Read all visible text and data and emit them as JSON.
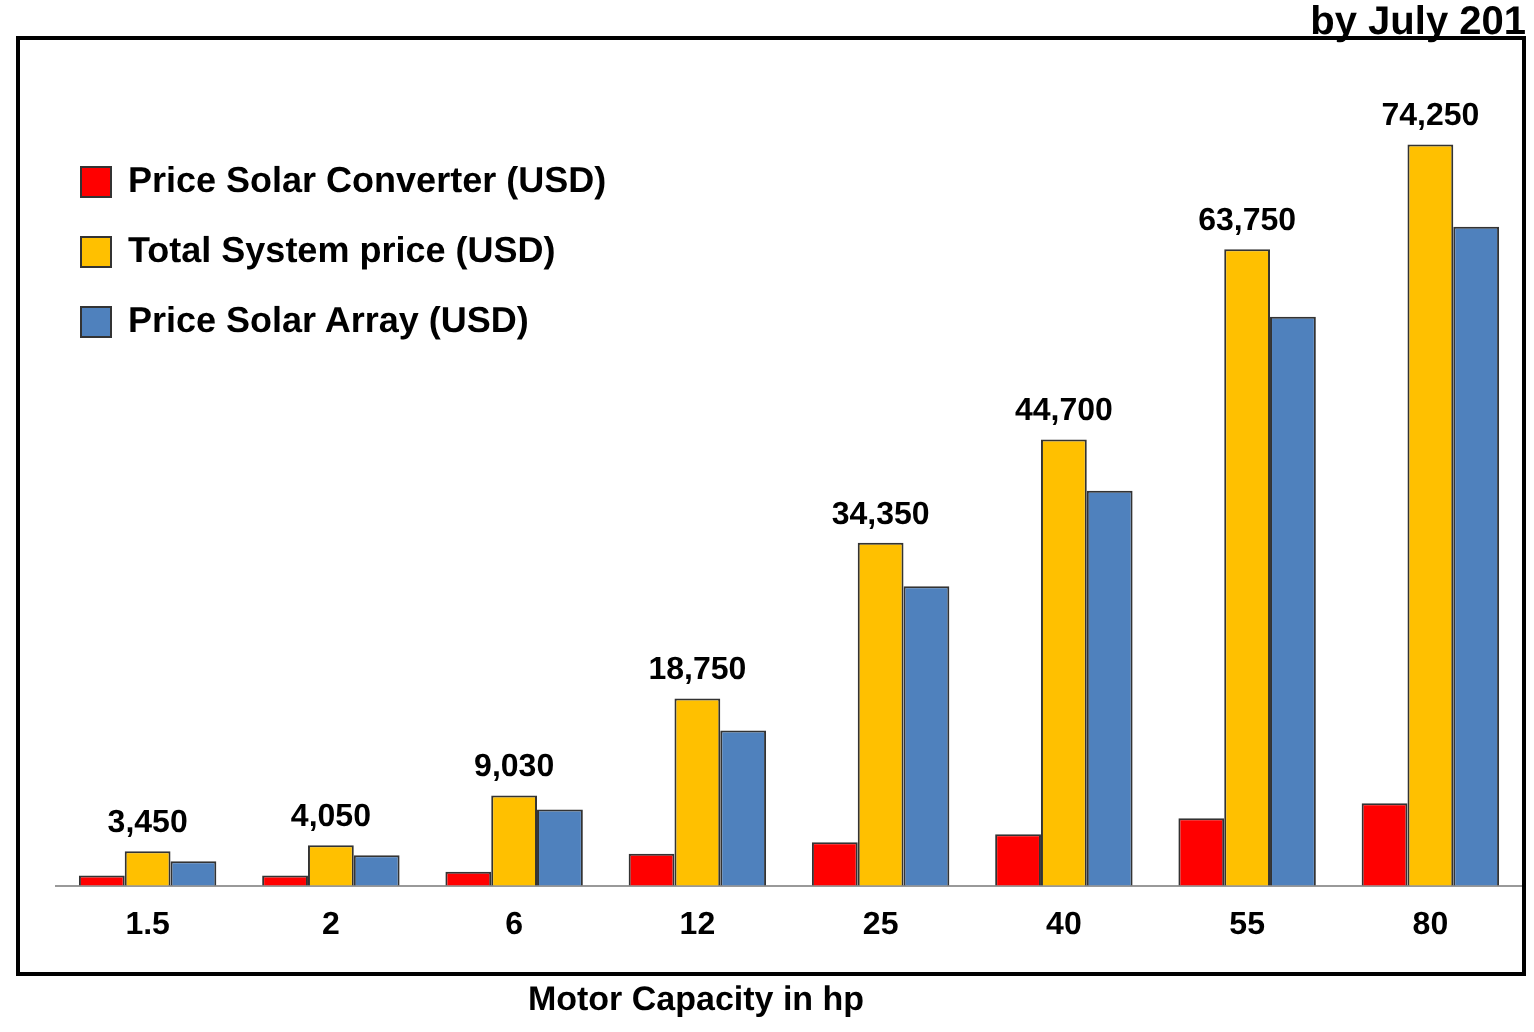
{
  "chart_data": {
    "type": "bar",
    "title": "by July 201",
    "xlabel": "Motor Capacity in hp",
    "categories": [
      "1.5",
      "2",
      "6",
      "12",
      "25",
      "40",
      "55",
      "80"
    ],
    "series": [
      {
        "name": "Price Solar Converter (USD)",
        "color": "#ff0000",
        "values": [
          1000,
          1000,
          1400,
          3200,
          4350,
          5150,
          6750,
          8250
        ]
      },
      {
        "name": "Total System price (USD)",
        "color": "#ffc000",
        "values": [
          3450,
          4050,
          9030,
          18750,
          34350,
          44700,
          63750,
          74250
        ],
        "value_labels": [
          "3,450",
          "4,050",
          "9,030",
          "18,750",
          "34,350",
          "44,700",
          "63,750",
          "74,250"
        ]
      },
      {
        "name": "Price Solar Array (USD)",
        "color": "#4f81bd",
        "values": [
          2450,
          3050,
          7630,
          15550,
          30000,
          39550,
          57000,
          66000
        ]
      }
    ],
    "legend": "top left",
    "grid": false
  }
}
